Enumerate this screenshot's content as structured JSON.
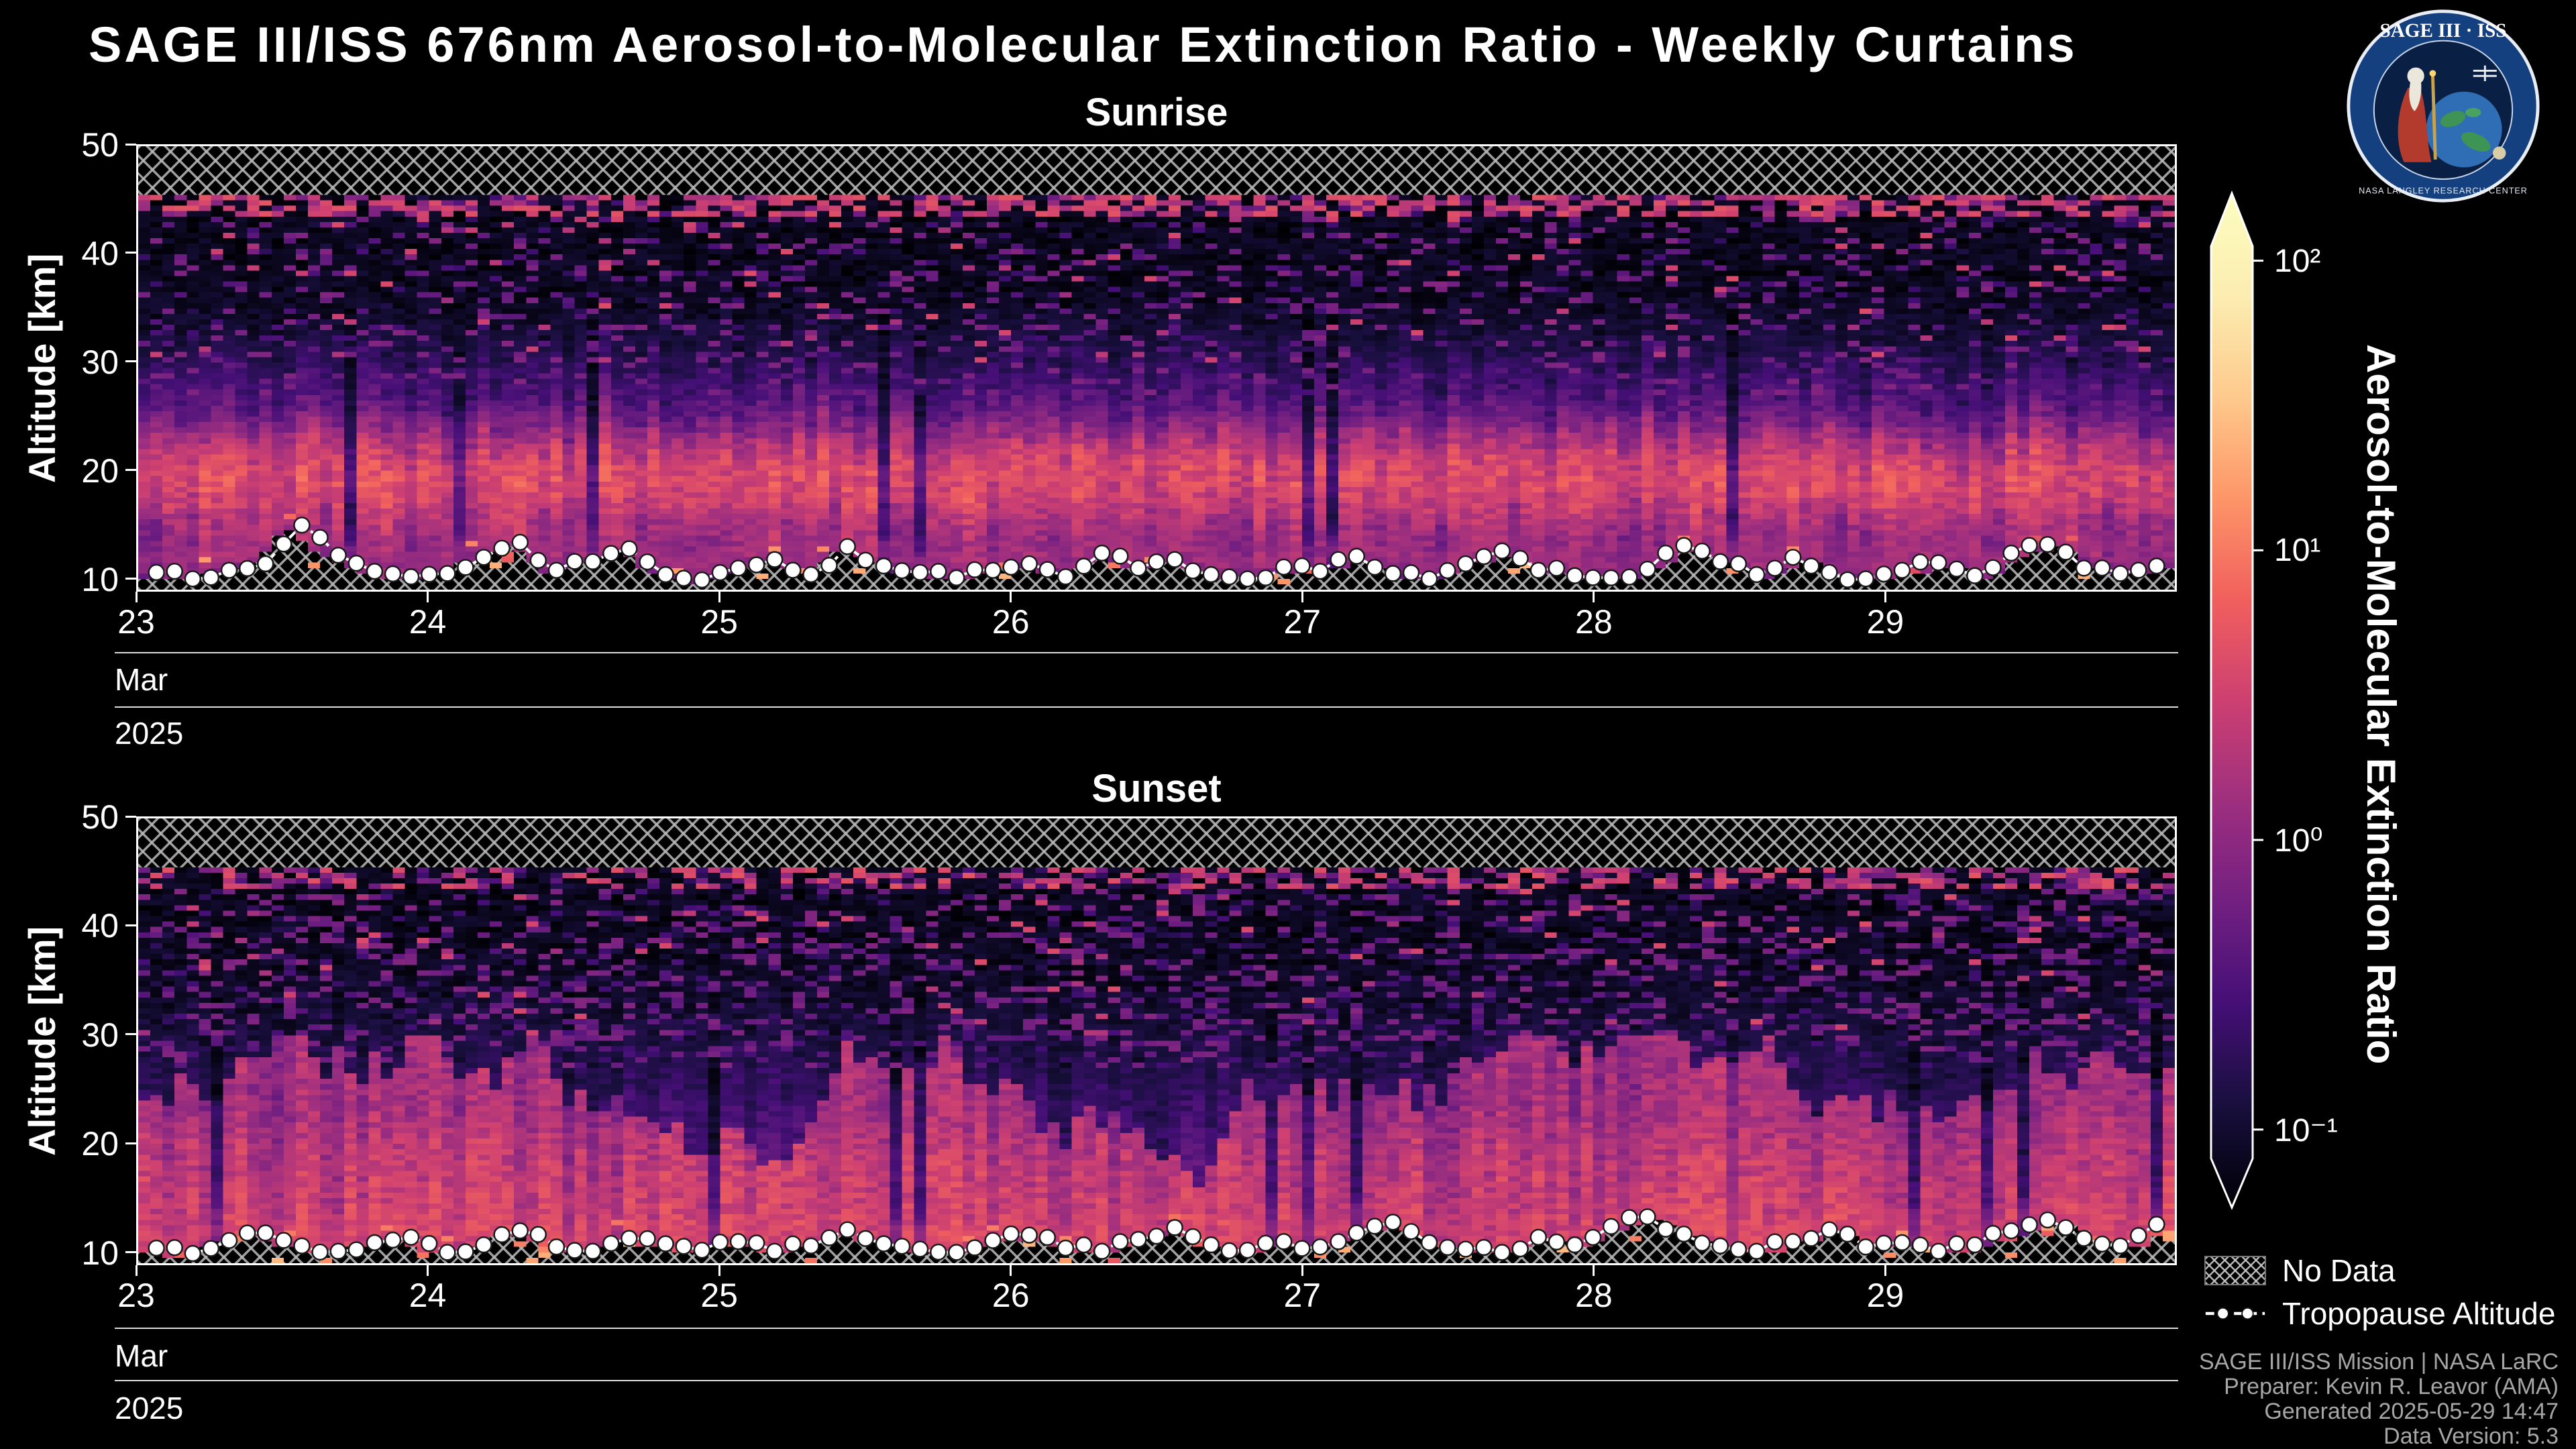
{
  "header": {
    "title": "SAGE III/ISS 676nm Aerosol-to-Molecular Extinction Ratio - Weekly Curtains"
  },
  "logo": {
    "top_text": "SAGE III · ISS",
    "bottom_text": "NASA LANGLEY RESEARCH CENTER"
  },
  "attribution": {
    "lines": [
      "SAGE III/ISS Mission | NASA LaRC",
      "Preparer: Kevin R. Leavor (AMA)",
      "Generated 2025-05-29 14:47",
      "Data Version: 5.3"
    ]
  },
  "chart_data": {
    "type": "heatmap",
    "title": "SAGE III/ISS 676nm Aerosol-to-Molecular Extinction Ratio - Weekly Curtains",
    "x_axis": {
      "tick_labels": [
        "23",
        "24",
        "25",
        "26",
        "27",
        "28",
        "29"
      ],
      "tick_days": [
        23,
        24,
        25,
        26,
        27,
        28,
        29
      ],
      "day_start": 23,
      "day_end": 30,
      "month_label": "Mar",
      "year_label": "2025"
    },
    "y_axis": {
      "label": "Altitude [km]",
      "tick_values": [
        10,
        20,
        30,
        40,
        50
      ],
      "min_display": 8.8,
      "max": 50
    },
    "colorbar": {
      "label": "Aerosol-to-Molecular Extinction Ratio",
      "scale": "log10",
      "log_min": -1.1,
      "log_max": 2.05,
      "ticks": [
        {
          "log": 2,
          "label": "10²"
        },
        {
          "log": 1,
          "label": "10¹"
        },
        {
          "log": 0,
          "label": "10⁰"
        },
        {
          "log": -1,
          "label": "10⁻¹"
        }
      ],
      "gradient_stops": [
        {
          "t": 0.0,
          "color": "#000004"
        },
        {
          "t": 0.1,
          "color": "#180f3d"
        },
        {
          "t": 0.2,
          "color": "#440f76"
        },
        {
          "t": 0.3,
          "color": "#721f81"
        },
        {
          "t": 0.4,
          "color": "#9e2f7f"
        },
        {
          "t": 0.5,
          "color": "#cd4071"
        },
        {
          "t": 0.6,
          "color": "#f1605d"
        },
        {
          "t": 0.7,
          "color": "#fd9668"
        },
        {
          "t": 0.8,
          "color": "#feca8d"
        },
        {
          "t": 0.9,
          "color": "#fcedb1"
        },
        {
          "t": 1.0,
          "color": "#fcfdbf"
        }
      ]
    },
    "legend": [
      {
        "label": "No Data",
        "symbol": "crosshatch"
      },
      {
        "label": "Tropopause Altitude",
        "symbol": "dashed-line-with-dots"
      }
    ],
    "no_data_region": "hatched: above ~45.5 km and below the tropopause",
    "render": {
      "cols": 168,
      "rows": 82,
      "no_data_top_km": 45.55
    },
    "panels": [
      {
        "title": "Sunrise",
        "event_type": "sunrise occultation",
        "tropopause_km": [
          10.4,
          9.8,
          10.6,
          11.2,
          14.8,
          12.0,
          10.5,
          10.0,
          10.3,
          11.8,
          13.2,
          10.6,
          11.4,
          12.6,
          10.2,
          9.7,
          10.8,
          11.6,
          10.2,
          12.8,
          11.0,
          10.4,
          9.9,
          10.6,
          11.2,
          10.0,
          12.2,
          10.8,
          11.6,
          10.2,
          9.8,
          10.9,
          10.5,
          11.9,
          10.3,
          9.8,
          11.2,
          12.4,
          10.6,
          10.1,
          9.9,
          10.7,
          12.9,
          11.4,
          10.2,
          11.8,
          10.4,
          9.8,
          10.6,
          11.3,
          10.1,
          12.2,
          13.0,
          10.8,
          10.3,
          11.0
        ],
        "render": {
          "seed": 20250323,
          "bands": [
            {
              "c": 19.2,
              "s": 2.4,
              "a": 3.4
            },
            {
              "c": 21.5,
              "s": 5.0,
              "a": 0.5
            },
            {
              "c": 14.0,
              "s": 3.0,
              "a": 0.8
            }
          ],
          "plume": false,
          "gap_prob": 0.03,
          "speckle_prob": 0.18,
          "top_streak_prob": 0.5
        }
      },
      {
        "title": "Sunset",
        "event_type": "sunset occultation",
        "tropopause_km": [
          10.2,
          9.7,
          10.9,
          11.6,
          10.4,
          9.9,
          10.7,
          11.2,
          9.8,
          10.5,
          11.8,
          10.3,
          9.9,
          11.1,
          10.6,
          10.0,
          10.8,
          9.9,
          10.4,
          11.9,
          10.6,
          10.1,
          9.8,
          10.9,
          11.4,
          10.2,
          9.9,
          11.0,
          12.1,
          10.5,
          10.0,
          10.8,
          10.3,
          11.6,
          12.6,
          10.7,
          10.1,
          9.8,
          11.2,
          10.5,
          12.2,
          13.1,
          11.5,
          10.4,
          9.9,
          10.8,
          11.9,
          10.3,
          10.7,
          9.9,
          10.5,
          11.8,
          12.8,
          11.1,
          10.4,
          12.4
        ],
        "render": {
          "seed": 20250329,
          "bands": [
            {
              "c": 13.5,
              "s": 7.0,
              "a": 2.6
            },
            {
              "c": 24.0,
              "s": 6.0,
              "a": 0.4
            }
          ],
          "plume": true,
          "gap_prob": 0.07,
          "speckle_prob": 0.28,
          "top_streak_prob": 0.35
        }
      }
    ]
  }
}
